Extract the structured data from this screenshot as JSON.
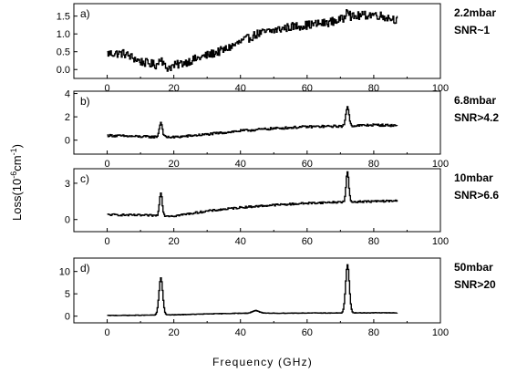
{
  "figure": {
    "ylabel_parts": [
      "Loss(10",
      "-6",
      "cm",
      "-1",
      ")"
    ],
    "xlabel": "Frequency (GHz)"
  },
  "chart_data": [
    {
      "type": "line",
      "panel": "a)",
      "annotation": [
        "2.2mbar",
        "SNR~1"
      ],
      "xlim": [
        -10,
        100
      ],
      "ylim": [
        -0.25,
        1.85
      ],
      "xticks": [
        0,
        20,
        40,
        60,
        80,
        100
      ],
      "yticks": [
        0.0,
        0.5,
        1.0,
        1.5
      ],
      "ytick_labels": [
        "0.0",
        "0.5",
        "1.0",
        "1.5"
      ],
      "x_range": [
        0,
        87
      ],
      "baseline": [
        [
          0,
          0.45
        ],
        [
          5,
          0.45
        ],
        [
          10,
          0.22
        ],
        [
          15,
          0.12
        ],
        [
          18,
          0.05
        ],
        [
          25,
          0.25
        ],
        [
          35,
          0.55
        ],
        [
          45,
          1.0
        ],
        [
          55,
          1.2
        ],
        [
          65,
          1.3
        ],
        [
          75,
          1.5
        ],
        [
          80,
          1.55
        ],
        [
          87,
          1.4
        ]
      ],
      "peaks": [
        {
          "x": 16,
          "height": 0.25,
          "width": 0.5
        },
        {
          "x": 72,
          "height": 0.3,
          "width": 0.5
        }
      ],
      "noise": 0.12
    },
    {
      "type": "line",
      "panel": "b)",
      "annotation": [
        "6.8mbar",
        "SNR>4.2"
      ],
      "xlim": [
        -10,
        100
      ],
      "ylim": [
        -1.2,
        4.2
      ],
      "xticks": [
        0,
        20,
        40,
        60,
        80,
        100
      ],
      "yticks": [
        0,
        2,
        4
      ],
      "ytick_labels": [
        "0",
        "2",
        "4"
      ],
      "x_range": [
        0,
        87
      ],
      "baseline": [
        [
          0,
          0.4
        ],
        [
          10,
          0.3
        ],
        [
          20,
          0.25
        ],
        [
          30,
          0.5
        ],
        [
          40,
          0.8
        ],
        [
          50,
          1.0
        ],
        [
          60,
          1.15
        ],
        [
          70,
          1.2
        ],
        [
          80,
          1.3
        ],
        [
          87,
          1.25
        ]
      ],
      "peaks": [
        {
          "x": 16,
          "height": 1.25,
          "width": 0.45
        },
        {
          "x": 72,
          "height": 1.7,
          "width": 0.45
        }
      ],
      "noise": 0.1
    },
    {
      "type": "line",
      "panel": "c)",
      "annotation": [
        "10mbar",
        "SNR>6.6"
      ],
      "xlim": [
        -10,
        100
      ],
      "ylim": [
        -1.0,
        4.2
      ],
      "xticks": [
        0,
        20,
        40,
        60,
        80,
        100
      ],
      "yticks": [
        0,
        3
      ],
      "ytick_labels": [
        "0",
        "3"
      ],
      "x_range": [
        0,
        87
      ],
      "baseline": [
        [
          0,
          0.4
        ],
        [
          10,
          0.35
        ],
        [
          20,
          0.3
        ],
        [
          30,
          0.7
        ],
        [
          40,
          1.0
        ],
        [
          50,
          1.2
        ],
        [
          60,
          1.35
        ],
        [
          70,
          1.45
        ],
        [
          80,
          1.5
        ],
        [
          87,
          1.55
        ]
      ],
      "peaks": [
        {
          "x": 16,
          "height": 1.95,
          "width": 0.4
        },
        {
          "x": 72,
          "height": 2.5,
          "width": 0.4
        }
      ],
      "noise": 0.08
    },
    {
      "type": "line",
      "panel": "d)",
      "annotation": [
        "50mbar",
        "SNR>20"
      ],
      "xlim": [
        -10,
        100
      ],
      "ylim": [
        -1.5,
        13.0
      ],
      "xticks": [
        0,
        20,
        40,
        60,
        80,
        100
      ],
      "yticks": [
        0,
        5,
        10
      ],
      "ytick_labels": [
        "0",
        "5",
        "10"
      ],
      "x_range": [
        0,
        87
      ],
      "baseline": [
        [
          0,
          0.15
        ],
        [
          10,
          0.2
        ],
        [
          20,
          0.3
        ],
        [
          30,
          0.5
        ],
        [
          40,
          0.65
        ],
        [
          50,
          0.65
        ],
        [
          60,
          0.7
        ],
        [
          70,
          0.7
        ],
        [
          80,
          0.75
        ],
        [
          87,
          0.75
        ]
      ],
      "peaks": [
        {
          "x": 16,
          "height": 8.3,
          "width": 0.55
        },
        {
          "x": 44.5,
          "height": 0.6,
          "width": 1.0
        },
        {
          "x": 72,
          "height": 10.8,
          "width": 0.55
        }
      ],
      "noise": 0.05
    }
  ]
}
